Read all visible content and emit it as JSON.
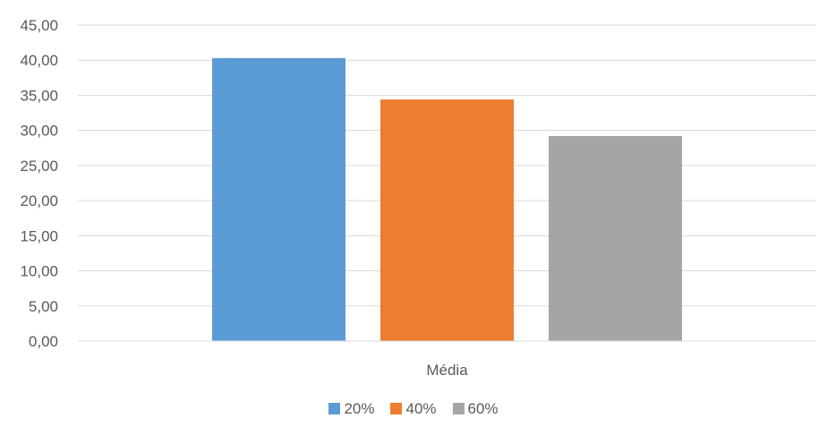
{
  "chart_data": {
    "type": "bar",
    "categories": [
      "Média"
    ],
    "series": [
      {
        "name": "20%",
        "values": [
          40.3
        ],
        "color": "#5B9BD5"
      },
      {
        "name": "40%",
        "values": [
          34.4
        ],
        "color": "#ED7D31"
      },
      {
        "name": "60%",
        "values": [
          29.2
        ],
        "color": "#A5A5A5"
      }
    ],
    "y_ticks": [
      "0,00",
      "5,00",
      "10,00",
      "15,00",
      "20,00",
      "25,00",
      "30,00",
      "35,00",
      "40,00",
      "45,00"
    ],
    "ylim": [
      0,
      45
    ],
    "grid": true,
    "legend_position": "bottom",
    "gridline_color": "#D9D9D9",
    "axis_color": "#D9D9D9"
  }
}
